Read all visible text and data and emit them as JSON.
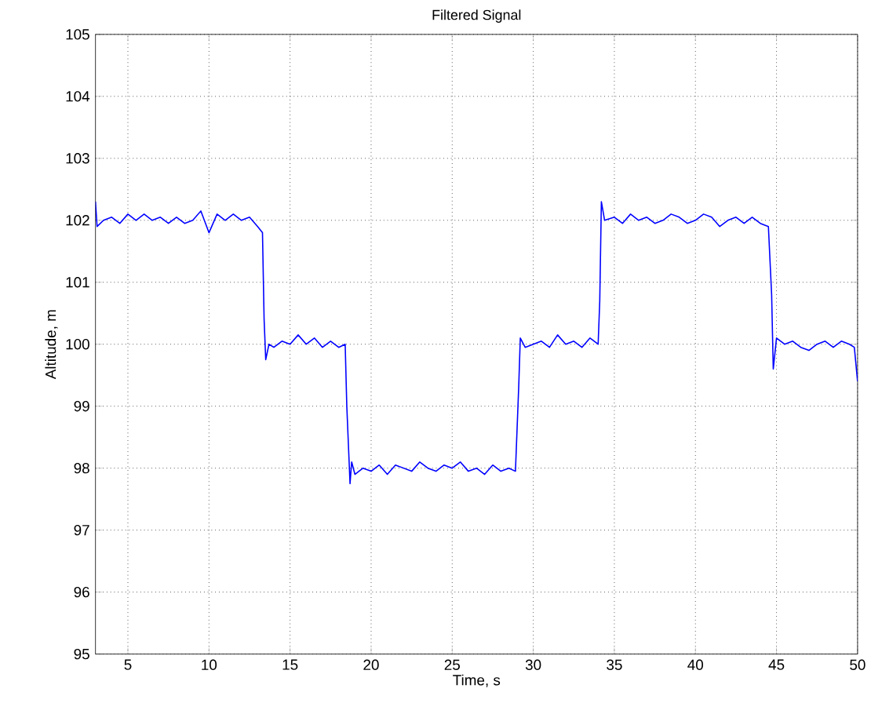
{
  "chart_data": {
    "type": "line",
    "title": "Filtered Signal",
    "xlabel": "Time, s",
    "ylabel": "Altitude, m",
    "x": [
      3,
      3.1,
      3.5,
      4,
      4.5,
      5,
      5.5,
      6,
      6.5,
      7,
      7.5,
      8,
      8.5,
      9,
      9.5,
      10,
      10.5,
      11,
      11.5,
      12,
      12.5,
      13,
      13.3,
      13.4,
      13.5,
      13.7,
      14,
      14.5,
      15,
      15.5,
      16,
      16.5,
      17,
      17.5,
      18,
      18.4,
      18.5,
      18.7,
      18.8,
      19,
      19.5,
      20,
      20.5,
      21,
      21.5,
      22,
      22.5,
      23,
      23.5,
      24,
      24.5,
      25,
      25.5,
      26,
      26.5,
      27,
      27.5,
      28,
      28.5,
      28.9,
      29.1,
      29.2,
      29.5,
      30,
      30.5,
      31,
      31.5,
      32,
      32.5,
      33,
      33.5,
      34,
      34.1,
      34.2,
      34.4,
      35,
      35.5,
      36,
      36.5,
      37,
      37.5,
      38,
      38.5,
      39,
      39.5,
      40,
      40.5,
      41,
      41.5,
      42,
      42.5,
      43,
      43.5,
      44,
      44.5,
      44.7,
      44.8,
      45,
      45.5,
      46,
      46.5,
      47,
      47.5,
      48,
      48.5,
      49,
      49.5,
      49.8,
      50
    ],
    "values": [
      102.3,
      101.9,
      102.0,
      102.05,
      101.95,
      102.1,
      102.0,
      102.1,
      102.0,
      102.05,
      101.95,
      102.05,
      101.95,
      102.0,
      102.15,
      101.8,
      102.1,
      102.0,
      102.1,
      102.0,
      102.05,
      101.9,
      101.8,
      100.4,
      99.75,
      100.0,
      99.95,
      100.05,
      100.0,
      100.15,
      100.0,
      100.1,
      99.95,
      100.05,
      99.95,
      100.0,
      99.0,
      97.75,
      98.1,
      97.9,
      98.0,
      97.95,
      98.05,
      97.9,
      98.05,
      98.0,
      97.95,
      98.1,
      98.0,
      97.95,
      98.05,
      98.0,
      98.1,
      97.95,
      98.0,
      97.9,
      98.05,
      97.95,
      98.0,
      97.95,
      99.3,
      100.1,
      99.95,
      100.0,
      100.05,
      99.95,
      100.15,
      100.0,
      100.05,
      99.95,
      100.1,
      100.0,
      100.7,
      102.3,
      102.0,
      102.05,
      101.95,
      102.1,
      102.0,
      102.05,
      101.95,
      102.0,
      102.1,
      102.05,
      101.95,
      102.0,
      102.1,
      102.05,
      101.9,
      102.0,
      102.05,
      101.95,
      102.05,
      101.95,
      101.9,
      100.8,
      99.6,
      100.1,
      100.0,
      100.05,
      99.95,
      99.9,
      100.0,
      100.05,
      99.95,
      100.05,
      100.0,
      99.95,
      99.4
    ],
    "color": "#0000ff",
    "xlim": [
      3,
      50
    ],
    "ylim": [
      95,
      105
    ],
    "xticks": [
      5,
      10,
      15,
      20,
      25,
      30,
      35,
      40,
      45,
      50
    ],
    "yticks": [
      95,
      96,
      97,
      98,
      99,
      100,
      101,
      102,
      103,
      104,
      105
    ],
    "grid": true
  }
}
